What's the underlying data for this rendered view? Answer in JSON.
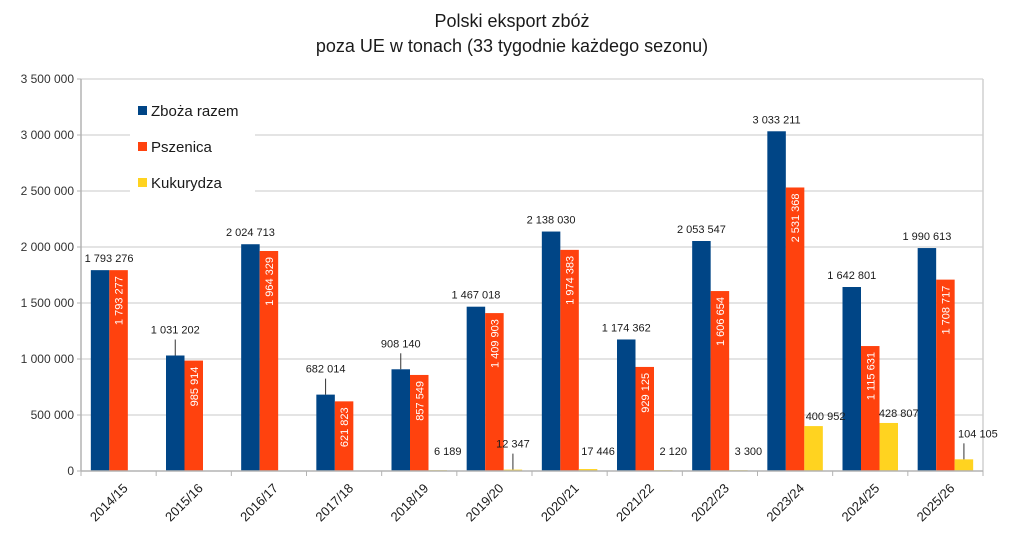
{
  "chart_data": {
    "type": "bar",
    "title": [
      "Polski eksport zbóż",
      "poza UE w tonach (33 tygodnie każdego sezonu)"
    ],
    "xlabel": "",
    "ylabel": "",
    "ylim": [
      0,
      3500000
    ],
    "yticks": [
      0,
      500000,
      1000000,
      1500000,
      2000000,
      2500000,
      3000000,
      3500000
    ],
    "ytick_labels": [
      "0",
      "500 000",
      "1 000 000",
      "1 500 000",
      "2 000 000",
      "2 500 000",
      "3 000 000",
      "3 500 000"
    ],
    "grid": true,
    "legend_position": "top-left",
    "categories": [
      "2014/15",
      "2015/16",
      "2016/17",
      "2017/18",
      "2018/19",
      "2019/20",
      "2020/21",
      "2021/22",
      "2022/23",
      "2023/24",
      "2024/25",
      "2025/26"
    ],
    "series": [
      {
        "name": "Zboża razem",
        "color": "#004586",
        "values": [
          1793276,
          1031202,
          2024713,
          682014,
          908140,
          1467018,
          2138030,
          1174362,
          2053547,
          3033211,
          1642801,
          1990613
        ],
        "labels": [
          "1 793 276",
          "1 031 202",
          "2 024 713",
          "682 014",
          "908 140",
          "1 467 018",
          "2 138 030",
          "1 174 362",
          "2 053 547",
          "3 033 211",
          "1 642 801",
          "1 990 613"
        ]
      },
      {
        "name": "Pszenica",
        "color": "#ff420e",
        "values": [
          1793277,
          985914,
          1964329,
          621823,
          857549,
          1409903,
          1974383,
          929125,
          1606654,
          2531368,
          1115631,
          1708717
        ],
        "labels": [
          "1 793 277",
          "985 914",
          "1 964 329",
          "621 823",
          "857 549",
          "1 409 903",
          "1 974 383",
          "929 125",
          "1 606 654",
          "2 531 368",
          "1 115 631",
          "1 708 717"
        ]
      },
      {
        "name": "Kukurydza",
        "color": "#ffd320",
        "values": [
          null,
          null,
          null,
          null,
          6189,
          12347,
          17446,
          2120,
          3300,
          400952,
          428807,
          104105
        ],
        "labels": [
          null,
          null,
          null,
          null,
          "6 189",
          "12 347",
          "17 446",
          "2 120",
          "3 300",
          "400 952",
          "428 807",
          "104 105"
        ]
      }
    ]
  }
}
